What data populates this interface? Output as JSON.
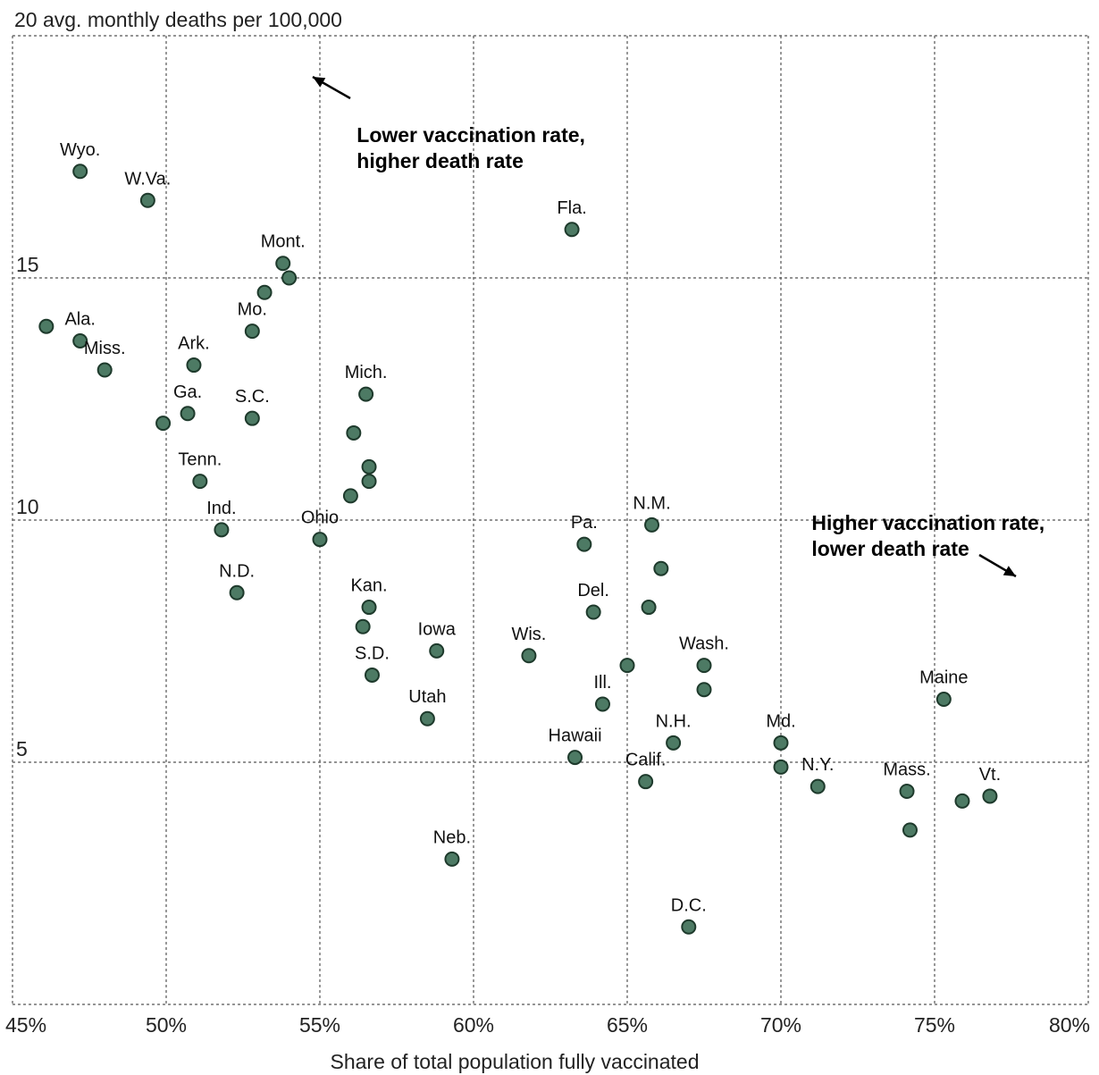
{
  "chart_data": {
    "type": "scatter",
    "title": "",
    "ylabel": "20 avg. monthly deaths per 100,000",
    "xlabel": "Share of total population fully vaccinated",
    "xlim": [
      45,
      80
    ],
    "ylim": [
      0,
      20
    ],
    "grid": true,
    "x_ticks": [
      {
        "value": 45,
        "label": "45%"
      },
      {
        "value": 50,
        "label": "50%"
      },
      {
        "value": 55,
        "label": "55%"
      },
      {
        "value": 60,
        "label": "60%"
      },
      {
        "value": 65,
        "label": "65%"
      },
      {
        "value": 70,
        "label": "70%"
      },
      {
        "value": 75,
        "label": "75%"
      },
      {
        "value": 80,
        "label": "80%"
      }
    ],
    "y_ticks": [
      {
        "value": 5,
        "label": "5"
      },
      {
        "value": 10,
        "label": "10"
      },
      {
        "value": 15,
        "label": "15"
      }
    ],
    "annotations": [
      {
        "lines": [
          "Lower vaccination rate,",
          "higher death rate"
        ],
        "arrow": "up-left"
      },
      {
        "lines": [
          "Higher vaccination rate,",
          "lower death rate"
        ],
        "arrow": "down-right"
      }
    ],
    "points": [
      {
        "x": 46.1,
        "y": 14.0,
        "label": ""
      },
      {
        "x": 47.2,
        "y": 13.7,
        "label": "Ala."
      },
      {
        "x": 48.0,
        "y": 13.1,
        "label": "Miss."
      },
      {
        "x": 47.2,
        "y": 17.2,
        "label": "Wyo."
      },
      {
        "x": 49.4,
        "y": 16.6,
        "label": "W.Va."
      },
      {
        "x": 50.9,
        "y": 13.2,
        "label": "Ark."
      },
      {
        "x": 50.7,
        "y": 12.2,
        "label": "Ga."
      },
      {
        "x": 49.9,
        "y": 12.0,
        "label": ""
      },
      {
        "x": 52.8,
        "y": 13.9,
        "label": "Mo."
      },
      {
        "x": 52.8,
        "y": 12.1,
        "label": "S.C."
      },
      {
        "x": 53.8,
        "y": 15.3,
        "label": "Mont."
      },
      {
        "x": 54.0,
        "y": 15.0,
        "label": ""
      },
      {
        "x": 53.2,
        "y": 14.7,
        "label": ""
      },
      {
        "x": 51.1,
        "y": 10.8,
        "label": "Tenn."
      },
      {
        "x": 51.8,
        "y": 9.8,
        "label": "Ind."
      },
      {
        "x": 52.3,
        "y": 8.5,
        "label": "N.D."
      },
      {
        "x": 55.0,
        "y": 9.6,
        "label": "Ohio"
      },
      {
        "x": 56.5,
        "y": 12.6,
        "label": "Mich."
      },
      {
        "x": 56.1,
        "y": 11.8,
        "label": ""
      },
      {
        "x": 56.6,
        "y": 11.1,
        "label": ""
      },
      {
        "x": 56.6,
        "y": 10.8,
        "label": ""
      },
      {
        "x": 56.0,
        "y": 10.5,
        "label": ""
      },
      {
        "x": 56.6,
        "y": 8.2,
        "label": "Kan."
      },
      {
        "x": 56.4,
        "y": 7.8,
        "label": ""
      },
      {
        "x": 56.7,
        "y": 6.8,
        "label": "S.D."
      },
      {
        "x": 58.8,
        "y": 7.3,
        "label": "Iowa"
      },
      {
        "x": 58.5,
        "y": 5.9,
        "label": "Utah"
      },
      {
        "x": 59.3,
        "y": 3.0,
        "label": "Neb."
      },
      {
        "x": 61.8,
        "y": 7.2,
        "label": "Wis."
      },
      {
        "x": 63.2,
        "y": 16.0,
        "label": "Fla."
      },
      {
        "x": 63.6,
        "y": 9.5,
        "label": "Pa."
      },
      {
        "x": 63.9,
        "y": 8.1,
        "label": "Del."
      },
      {
        "x": 64.2,
        "y": 6.2,
        "label": "Ill."
      },
      {
        "x": 63.3,
        "y": 5.1,
        "label": "Hawaii"
      },
      {
        "x": 65.0,
        "y": 7.0,
        "label": ""
      },
      {
        "x": 65.8,
        "y": 9.9,
        "label": "N.M."
      },
      {
        "x": 66.1,
        "y": 9.0,
        "label": ""
      },
      {
        "x": 65.7,
        "y": 8.2,
        "label": ""
      },
      {
        "x": 65.6,
        "y": 4.6,
        "label": "Calif."
      },
      {
        "x": 66.5,
        "y": 5.4,
        "label": "N.H."
      },
      {
        "x": 67.0,
        "y": 1.6,
        "label": "D.C."
      },
      {
        "x": 67.5,
        "y": 7.0,
        "label": "Wash."
      },
      {
        "x": 67.5,
        "y": 6.5,
        "label": ""
      },
      {
        "x": 70.0,
        "y": 5.4,
        "label": "Md."
      },
      {
        "x": 70.0,
        "y": 4.9,
        "label": ""
      },
      {
        "x": 71.2,
        "y": 4.5,
        "label": "N.Y."
      },
      {
        "x": 74.1,
        "y": 4.4,
        "label": "Mass."
      },
      {
        "x": 74.2,
        "y": 3.6,
        "label": ""
      },
      {
        "x": 75.9,
        "y": 4.2,
        "label": ""
      },
      {
        "x": 76.8,
        "y": 4.3,
        "label": "Vt."
      },
      {
        "x": 75.3,
        "y": 6.3,
        "label": "Maine"
      }
    ]
  }
}
